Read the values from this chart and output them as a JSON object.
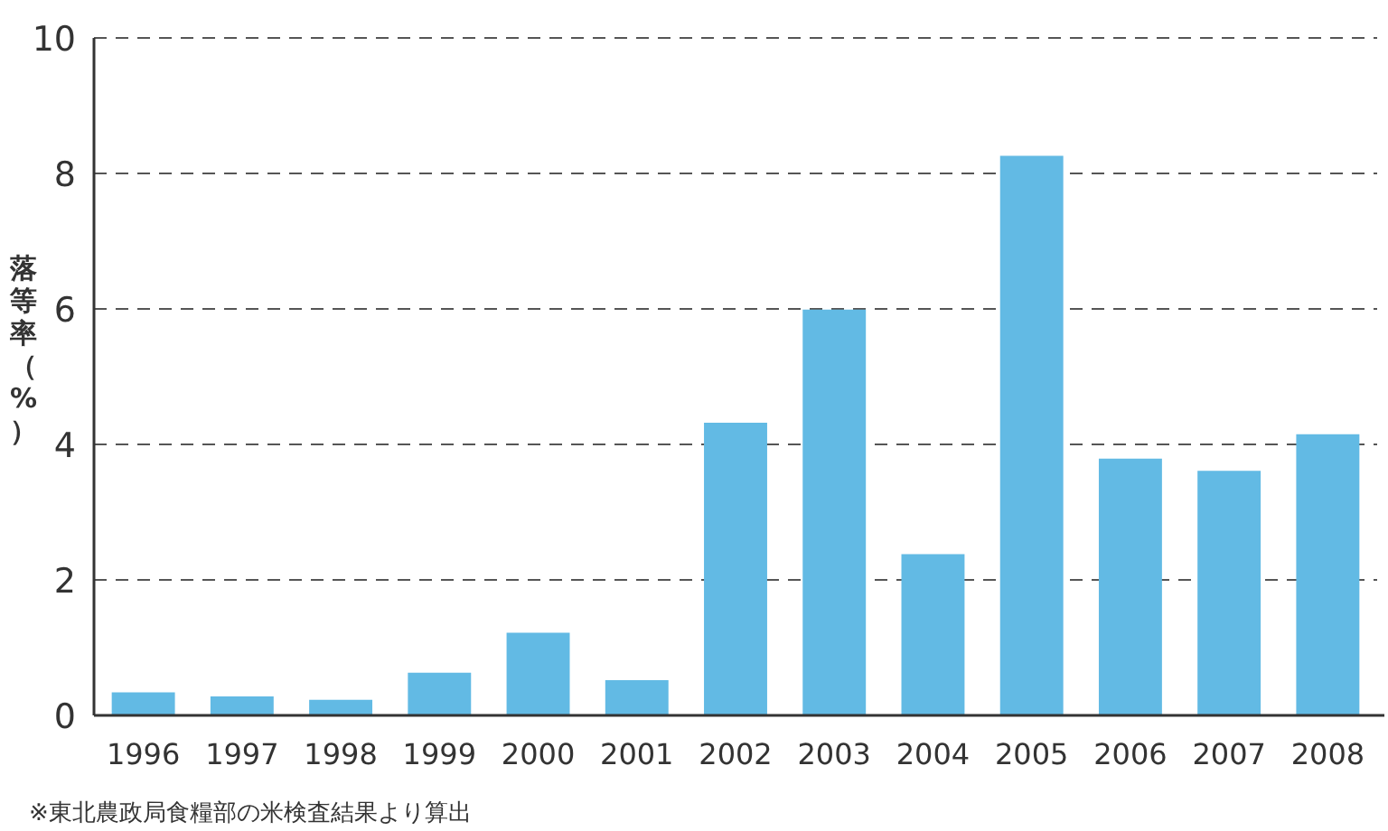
{
  "chart_data": {
    "type": "bar",
    "ylabel": "落等率（%）",
    "categories": [
      "1996",
      "1997",
      "1998",
      "1999",
      "2000",
      "2001",
      "2002",
      "2003",
      "2004",
      "2005",
      "2006",
      "2007",
      "2008"
    ],
    "values": [
      0.34,
      0.28,
      0.23,
      0.63,
      1.22,
      0.52,
      4.32,
      5.99,
      2.38,
      8.26,
      3.79,
      3.61,
      4.15
    ],
    "color": "#62bae4",
    "ylim": [
      0,
      10
    ],
    "yticks": [
      0,
      2,
      4,
      6,
      8,
      10
    ],
    "grid": "y",
    "annotations": [
      "※東北農政局食糧部の米検査結果より算出"
    ]
  }
}
